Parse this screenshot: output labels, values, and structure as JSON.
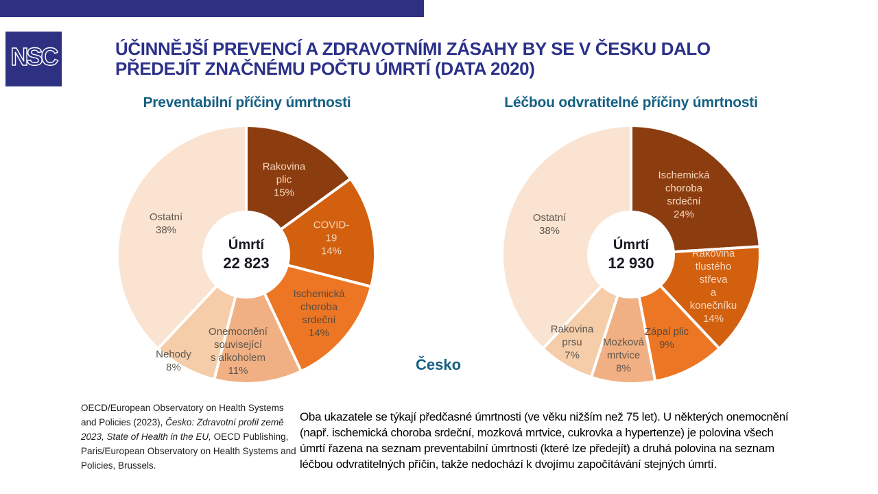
{
  "header": {
    "logo_text": "NSC",
    "title_line1": "ÚČINNĚJŠÍ PREVENCÍ A ZDRAVOTNÍMI ZÁSAHY BY SE V ČESKU DALO",
    "title_line2": "PŘEDEJÍT ZNAČNÉMU POČTU ÚMRTÍ (DATA 2020)"
  },
  "country_label": "Česko",
  "colors": {
    "navy_bar": "#2E3182",
    "title_navy": "#2B3189",
    "chart_title_teal": "#156082",
    "center_text": "#17171F",
    "slice_dark_brown": "#8C3D10",
    "slice_dark_orange": "#D2600F",
    "slice_medium_orange": "#EC7623",
    "slice_peach": "#F0B083",
    "slice_light_peach": "#F5CDA9",
    "slice_pale": "#FAE3D1"
  },
  "chart_data": [
    {
      "type": "pie",
      "variant": "donut",
      "title": "Preventabilní příčiny úmrtnosti",
      "center_label": "Úmrtí",
      "center_value": "22 823",
      "start_angle": "12 o'clock, clockwise",
      "slices": [
        {
          "label": "Rakovina plic",
          "label_lines": [
            "Rakovina",
            "plic"
          ],
          "pct": 15,
          "color": "#8C3D10",
          "text_color": "#F7D8BF",
          "label_pos": [
            245,
            81
          ]
        },
        {
          "label": "COVID-19",
          "label_lines": [
            "COVID-19"
          ],
          "pct": 14,
          "color": "#D2600F",
          "text_color": "#F7D8BF",
          "label_pos": [
            314,
            166
          ]
        },
        {
          "label": "Ischemická choroba srdeční",
          "label_lines": [
            "Ischemická",
            "choroba",
            "srdeční"
          ],
          "pct": 14,
          "color": "#EC7623",
          "text_color": "#5B4A3D",
          "label_pos": [
            296,
            276
          ]
        },
        {
          "label": "Onemocnění související s alkoholem",
          "label_lines": [
            "Onemocnění",
            "související",
            "s alkoholem"
          ],
          "pct": 11,
          "color": "#F0B083",
          "text_color": "#5D564E",
          "label_pos": [
            178,
            331
          ]
        },
        {
          "label": "Nehody",
          "label_lines": [
            "Nehody"
          ],
          "pct": 8,
          "color": "#F5CDA9",
          "text_color": "#5D564E",
          "label_pos": [
            84,
            345
          ]
        },
        {
          "label": "Ostatní",
          "label_lines": [
            "Ostatní"
          ],
          "pct": 38,
          "color": "#FAE3D1",
          "text_color": "#5D564E",
          "label_pos": [
            73,
            145
          ]
        }
      ]
    },
    {
      "type": "pie",
      "variant": "donut",
      "title": "Léčbou odvratitelné příčiny úmrtnosti",
      "center_label": "Úmrtí",
      "center_value": "12 930",
      "start_angle": "12 o'clock, clockwise",
      "slices": [
        {
          "label": "Ischemická choroba srdeční",
          "label_lines": [
            "Ischemická",
            "choroba",
            "srdeční"
          ],
          "pct": 24,
          "color": "#8C3D10",
          "text_color": "#F7D8BF",
          "label_pos": [
            267,
            103
          ]
        },
        {
          "label": "Rakovina tlustého střeva a konečníku",
          "label_lines": [
            "Rakovina",
            "tlustého střeva",
            "a konečníku"
          ],
          "pct": 14,
          "color": "#D2600F",
          "text_color": "#F7D8BF",
          "label_pos": [
            310,
            236
          ]
        },
        {
          "label": "Zápal plic",
          "label_lines": [
            "Zápal plic"
          ],
          "pct": 9,
          "color": "#EC7623",
          "text_color": "#5B4A3D",
          "label_pos": [
            242,
            312
          ]
        },
        {
          "label": "Mozková mrtvice",
          "label_lines": [
            "Mozková",
            "mrtvice"
          ],
          "pct": 8,
          "color": "#F0B083",
          "text_color": "#5D564E",
          "label_pos": [
            179,
            337
          ]
        },
        {
          "label": "Rakovina prsu",
          "label_lines": [
            "Rakovina",
            "prsu"
          ],
          "pct": 7,
          "color": "#F5CDA9",
          "text_color": "#5D564E",
          "label_pos": [
            104,
            318
          ]
        },
        {
          "label": "Ostatní",
          "label_lines": [
            "Ostatní"
          ],
          "pct": 38,
          "color": "#FAE3D1",
          "text_color": "#5D564E",
          "label_pos": [
            71,
            146
          ]
        }
      ]
    }
  ],
  "citation": {
    "segments": [
      {
        "text": "OECD/European Observatory on Health Systems and Policies (2023), ",
        "italic": false
      },
      {
        "text": "Česko: Zdravotní profil země 2023, State of Health in the EU,",
        "italic": true
      },
      {
        "text": " OECD Publishing, Paris/European Observatory on Health Systems and Policies, Brussels.",
        "italic": false
      }
    ]
  },
  "body_paragraph": {
    "lines": [
      "Oba ukazatele se týkají předčasné úmrtnosti (ve věku nižším než 75 let). U některých onemocnění",
      "(např. ischemická choroba srdeční, mozková mrtvice, cukrovka a hypertenze) je polovina všech",
      "úmrtí řazena na seznam preventabilní úmrtnosti (které lze předejít) a druhá polovina na seznam",
      "léčbou odvratitelných příčin, takže nedochází k dvojímu započítávání stejných úmrtí."
    ]
  }
}
